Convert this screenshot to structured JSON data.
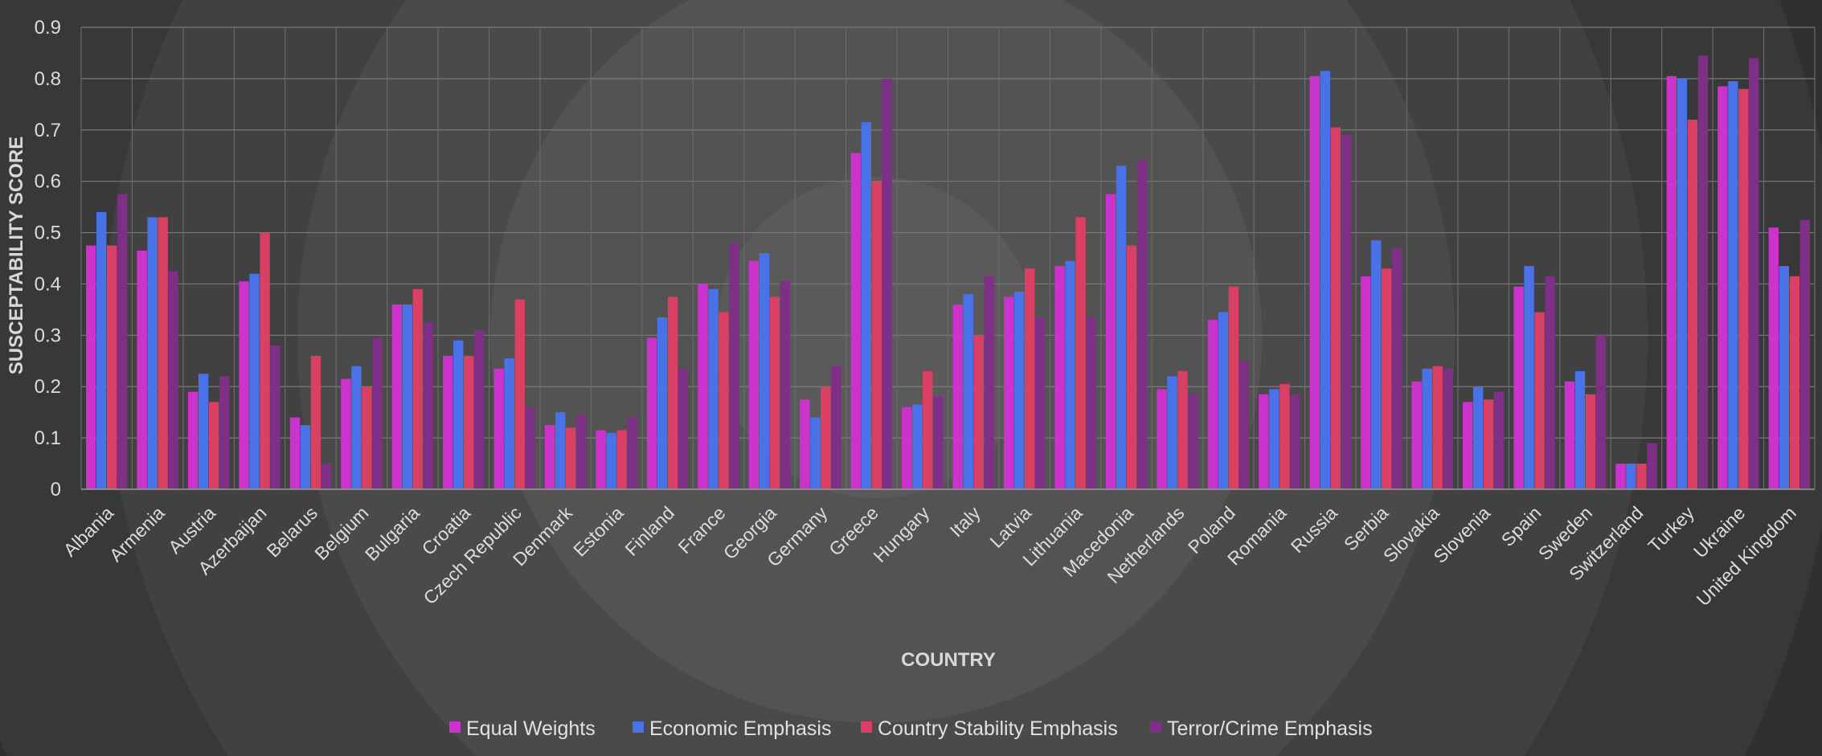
{
  "chart_data": {
    "type": "bar",
    "title": "",
    "xlabel": "COUNTRY",
    "ylabel": "SUSCEPTABILITY SCORE",
    "ylim": [
      0,
      0.9
    ],
    "yticks": [
      "0",
      "0.1",
      "0.2",
      "0.3",
      "0.4",
      "0.5",
      "0.6",
      "0.7",
      "0.8",
      "0.9"
    ],
    "grid": true,
    "legend_position": "bottom",
    "categories": [
      "Albania",
      "Armenia",
      "Austria",
      "Azerbaijan",
      "Belarus",
      "Belgium",
      "Bulgaria",
      "Croatia",
      "Czech Republic",
      "Denmark",
      "Estonia",
      "Finland",
      "France",
      "Georgia",
      "Germany",
      "Greece",
      "Hungary",
      "Italy",
      "Latvia",
      "Lithuania",
      "Macedonia",
      "Netherlands",
      "Poland",
      "Romania",
      "Russia",
      "Serbia",
      "Slovakia",
      "Slovenia",
      "Spain",
      "Sweden",
      "Switzerland",
      "Turkey",
      "Ukraine",
      "United Kingdom"
    ],
    "series": [
      {
        "name": "Equal Weights",
        "color": "#cc33cc",
        "values": [
          0.475,
          0.465,
          0.19,
          0.405,
          0.14,
          0.215,
          0.36,
          0.26,
          0.235,
          0.125,
          0.115,
          0.295,
          0.4,
          0.445,
          0.175,
          0.655,
          0.16,
          0.36,
          0.375,
          0.435,
          0.575,
          0.195,
          0.33,
          0.185,
          0.805,
          0.415,
          0.21,
          0.17,
          0.395,
          0.21,
          0.05,
          0.805,
          0.785,
          0.51
        ]
      },
      {
        "name": "Economic Emphasis",
        "color": "#4a72e8",
        "values": [
          0.54,
          0.53,
          0.225,
          0.42,
          0.125,
          0.24,
          0.36,
          0.29,
          0.255,
          0.15,
          0.11,
          0.335,
          0.39,
          0.46,
          0.14,
          0.715,
          0.165,
          0.38,
          0.385,
          0.445,
          0.63,
          0.22,
          0.345,
          0.195,
          0.815,
          0.485,
          0.235,
          0.2,
          0.435,
          0.23,
          0.05,
          0.8,
          0.795,
          0.435
        ]
      },
      {
        "name": "Country Stability Emphasis",
        "color": "#d94064",
        "values": [
          0.475,
          0.53,
          0.17,
          0.5,
          0.26,
          0.2,
          0.39,
          0.26,
          0.37,
          0.12,
          0.115,
          0.375,
          0.345,
          0.375,
          0.2,
          0.6,
          0.23,
          0.3,
          0.43,
          0.53,
          0.475,
          0.23,
          0.395,
          0.205,
          0.705,
          0.43,
          0.24,
          0.175,
          0.345,
          0.185,
          0.05,
          0.72,
          0.78,
          0.415
        ]
      },
      {
        "name": "Terror/Crime Emphasis",
        "color": "#7e2f86",
        "values": [
          0.575,
          0.425,
          0.22,
          0.28,
          0.05,
          0.295,
          0.325,
          0.31,
          0.16,
          0.145,
          0.14,
          0.235,
          0.48,
          0.405,
          0.24,
          0.8,
          0.18,
          0.415,
          0.335,
          0.335,
          0.64,
          0.185,
          0.25,
          0.185,
          0.69,
          0.47,
          0.235,
          0.19,
          0.415,
          0.3,
          0.09,
          0.845,
          0.84,
          0.525
        ]
      }
    ]
  }
}
